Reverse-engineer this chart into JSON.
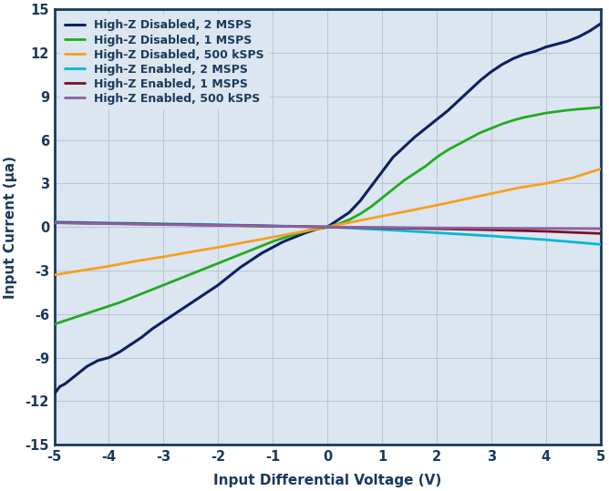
{
  "xlabel": "Input Differential Voltage (V)",
  "ylabel": "Input Current (µa)",
  "xlim": [
    -5,
    5
  ],
  "ylim": [
    -15,
    15
  ],
  "xticks": [
    -5,
    -4,
    -3,
    -2,
    -1,
    0,
    1,
    2,
    3,
    4,
    5
  ],
  "yticks": [
    -15,
    -12,
    -9,
    -6,
    -3,
    0,
    3,
    6,
    9,
    12,
    15
  ],
  "plot_bg_color": "#dce6f0",
  "fig_bg_color": "#ffffff",
  "grid_color": "#b8c8d8",
  "spine_color": "#1a3a5c",
  "tick_color": "#1a3a5c",
  "label_color": "#1a3a5c",
  "legend": [
    {
      "label": "High-Z Disabled, 2 MSPS",
      "color": "#0d2060",
      "lw": 2.2
    },
    {
      "label": "High-Z Disabled, 1 MSPS",
      "color": "#22aa22",
      "lw": 2.0
    },
    {
      "label": "High-Z Disabled, 500 kSPS",
      "color": "#f5a020",
      "lw": 2.0
    },
    {
      "label": "High-Z Enabled, 2 MSPS",
      "color": "#00b8d8",
      "lw": 2.0
    },
    {
      "label": "High-Z Enabled, 1 MSPS",
      "color": "#7a1020",
      "lw": 2.0
    },
    {
      "label": "High-Z Enabled, 500 kSPS",
      "color": "#9060a0",
      "lw": 2.0
    }
  ],
  "series": {
    "hiz_dis_2msps": {
      "x": [
        -5.0,
        -4.9,
        -4.8,
        -4.6,
        -4.4,
        -4.2,
        -4.0,
        -3.8,
        -3.6,
        -3.4,
        -3.2,
        -3.0,
        -2.8,
        -2.6,
        -2.4,
        -2.2,
        -2.0,
        -1.8,
        -1.6,
        -1.4,
        -1.2,
        -1.1,
        -1.0,
        -0.9,
        -0.8,
        -0.6,
        -0.4,
        -0.2,
        0.0,
        0.2,
        0.4,
        0.6,
        0.8,
        1.0,
        1.2,
        1.4,
        1.6,
        1.8,
        2.0,
        2.2,
        2.4,
        2.6,
        2.8,
        3.0,
        3.2,
        3.4,
        3.6,
        3.8,
        4.0,
        4.2,
        4.4,
        4.6,
        4.8,
        5.0
      ],
      "y": [
        -11.5,
        -11.0,
        -10.8,
        -10.2,
        -9.6,
        -9.2,
        -9.0,
        -8.6,
        -8.1,
        -7.6,
        -7.0,
        -6.5,
        -6.0,
        -5.5,
        -5.0,
        -4.5,
        -4.0,
        -3.4,
        -2.8,
        -2.3,
        -1.8,
        -1.6,
        -1.4,
        -1.2,
        -1.0,
        -0.7,
        -0.4,
        -0.15,
        0.0,
        0.5,
        1.0,
        1.8,
        2.8,
        3.8,
        4.8,
        5.5,
        6.2,
        6.8,
        7.4,
        8.0,
        8.7,
        9.4,
        10.1,
        10.7,
        11.2,
        11.6,
        11.9,
        12.1,
        12.4,
        12.6,
        12.8,
        13.1,
        13.5,
        14.0
      ]
    },
    "hiz_dis_1msps": {
      "x": [
        -5.0,
        -4.8,
        -4.6,
        -4.4,
        -4.2,
        -4.0,
        -3.8,
        -3.6,
        -3.4,
        -3.2,
        -3.0,
        -2.8,
        -2.6,
        -2.4,
        -2.2,
        -2.0,
        -1.8,
        -1.6,
        -1.4,
        -1.2,
        -1.0,
        -0.8,
        -0.6,
        -0.4,
        -0.2,
        0.0,
        0.2,
        0.4,
        0.6,
        0.8,
        1.0,
        1.2,
        1.4,
        1.6,
        1.8,
        2.0,
        2.2,
        2.4,
        2.6,
        2.8,
        3.0,
        3.2,
        3.4,
        3.6,
        3.8,
        4.0,
        4.2,
        4.4,
        4.6,
        4.8,
        5.0
      ],
      "y": [
        -6.7,
        -6.45,
        -6.2,
        -5.95,
        -5.7,
        -5.45,
        -5.2,
        -4.9,
        -4.6,
        -4.3,
        -4.0,
        -3.7,
        -3.4,
        -3.1,
        -2.8,
        -2.5,
        -2.2,
        -1.9,
        -1.6,
        -1.3,
        -1.0,
        -0.75,
        -0.5,
        -0.3,
        -0.1,
        0.0,
        0.2,
        0.5,
        0.9,
        1.4,
        2.0,
        2.6,
        3.2,
        3.7,
        4.2,
        4.8,
        5.3,
        5.7,
        6.1,
        6.5,
        6.8,
        7.1,
        7.35,
        7.55,
        7.7,
        7.85,
        7.95,
        8.05,
        8.12,
        8.18,
        8.25
      ]
    },
    "hiz_dis_500ksps": {
      "x": [
        -5.0,
        -4.5,
        -4.0,
        -3.5,
        -3.0,
        -2.5,
        -2.0,
        -1.5,
        -1.0,
        -0.5,
        0.0,
        0.5,
        1.0,
        1.5,
        2.0,
        2.5,
        3.0,
        3.5,
        4.0,
        4.5,
        5.0
      ],
      "y": [
        -3.3,
        -3.0,
        -2.7,
        -2.35,
        -2.05,
        -1.72,
        -1.4,
        -1.05,
        -0.7,
        -0.35,
        0.0,
        0.38,
        0.75,
        1.12,
        1.5,
        1.9,
        2.3,
        2.7,
        3.0,
        3.4,
        4.0
      ]
    },
    "hiz_en_2msps": {
      "x": [
        -5.0,
        -4.0,
        -3.0,
        -2.0,
        -1.0,
        0.0,
        1.0,
        2.0,
        3.0,
        4.0,
        5.0
      ],
      "y": [
        0.35,
        0.28,
        0.22,
        0.16,
        0.08,
        0.0,
        -0.18,
        -0.4,
        -0.62,
        -0.88,
        -1.2
      ]
    },
    "hiz_en_1msps": {
      "x": [
        -5.0,
        -4.0,
        -3.0,
        -2.0,
        -1.0,
        0.0,
        1.0,
        2.0,
        3.0,
        4.0,
        5.0
      ],
      "y": [
        0.3,
        0.24,
        0.18,
        0.12,
        0.06,
        0.0,
        -0.06,
        -0.12,
        -0.2,
        -0.3,
        -0.45
      ]
    },
    "hiz_en_500ksps": {
      "x": [
        -5.0,
        -4.0,
        -3.0,
        -2.0,
        -1.0,
        0.0,
        1.0,
        2.0,
        3.0,
        4.0,
        5.0
      ],
      "y": [
        0.28,
        0.22,
        0.16,
        0.11,
        0.05,
        0.0,
        -0.03,
        -0.06,
        -0.08,
        -0.1,
        -0.12
      ]
    }
  }
}
